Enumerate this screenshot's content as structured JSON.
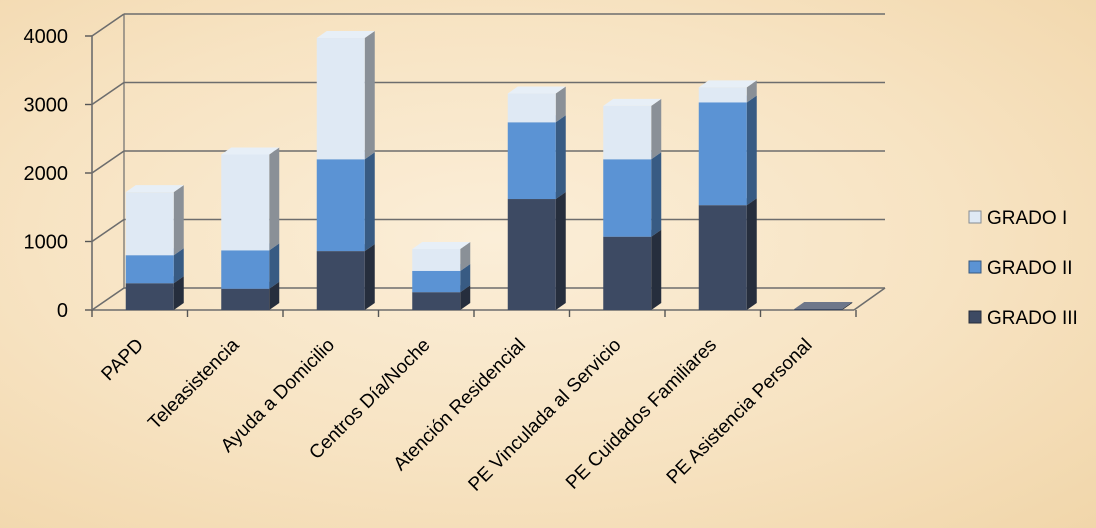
{
  "chart_data": {
    "type": "bar",
    "stacked": true,
    "three_d": true,
    "categories": [
      "PAPD",
      "Teleasistencia",
      "Ayuda a Domicilio",
      "Centros Día/Noche",
      "Atención Residencial",
      "PE Vinculada al Servicio",
      "PE Cuidados Familiares",
      "PE Asistencia Personal"
    ],
    "series": [
      {
        "name": "GRADO III",
        "values": [
          390,
          310,
          860,
          260,
          1620,
          1070,
          1530,
          15
        ],
        "color": "#3d4a63"
      },
      {
        "name": "GRADO II",
        "values": [
          410,
          560,
          1340,
          310,
          1120,
          1130,
          1500,
          0
        ],
        "color": "#5b93d4"
      },
      {
        "name": "GRADO I",
        "values": [
          920,
          1400,
          1770,
          320,
          420,
          780,
          220,
          0
        ],
        "color": "#dfe9f4"
      }
    ],
    "yticks": [
      0,
      1000,
      2000,
      3000,
      4000
    ],
    "ylim": [
      0,
      4000
    ],
    "legend": [
      "GRADO I",
      "GRADO II",
      "GRADO III"
    ],
    "legend_position": "right",
    "grid": true
  }
}
